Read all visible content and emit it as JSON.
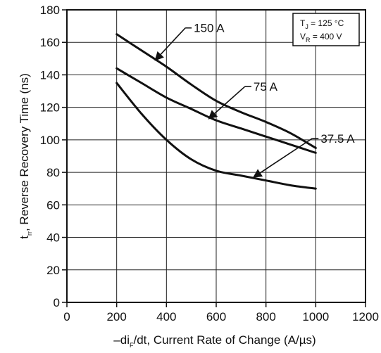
{
  "chart_data": {
    "type": "line",
    "xlabel": {
      "prefix": "–di",
      "sub": "F",
      "suffix": "/dt, Current Rate of Change (A/µs)"
    },
    "ylabel": {
      "main": "t",
      "sub": "rr",
      "suffix": ", Reverse Recovery Time (ns)"
    },
    "xlim": [
      0,
      1200
    ],
    "ylim": [
      0,
      180
    ],
    "xticks": [
      0,
      200,
      400,
      600,
      800,
      1000,
      1200
    ],
    "yticks": [
      0,
      20,
      40,
      60,
      80,
      100,
      120,
      140,
      160,
      180
    ],
    "grid": true,
    "conditions": {
      "line1": {
        "main": "T",
        "sub": "J",
        "rest": " = 125 °C"
      },
      "line2": {
        "main": "V",
        "sub": "R",
        "rest": " = 400 V"
      }
    },
    "series": [
      {
        "name": "150 A",
        "x": [
          200,
          300,
          400,
          500,
          600,
          700,
          800,
          900,
          1000
        ],
        "y": [
          165,
          155,
          145,
          134,
          124,
          117,
          111,
          104,
          95
        ]
      },
      {
        "name": "75 A",
        "x": [
          200,
          300,
          400,
          500,
          600,
          700,
          800,
          900,
          1000
        ],
        "y": [
          144,
          135,
          126,
          119,
          112,
          107,
          102,
          97,
          92
        ]
      },
      {
        "name": "37.5 A",
        "x": [
          200,
          300,
          400,
          500,
          600,
          700,
          800,
          900,
          1000
        ],
        "y": [
          135,
          116,
          100,
          88,
          81,
          78,
          75,
          72,
          70
        ]
      }
    ],
    "annotations": [
      {
        "label": "150 A",
        "text_at": [
          490,
          168
        ],
        "arrow_to": [
          355,
          149
        ]
      },
      {
        "label": "75 A",
        "text_at": [
          730,
          132
        ],
        "arrow_to": [
          570,
          113
        ]
      },
      {
        "label": "37.5 A",
        "text_at": [
          1000,
          100
        ],
        "arrow_to": [
          750,
          77
        ]
      }
    ]
  }
}
